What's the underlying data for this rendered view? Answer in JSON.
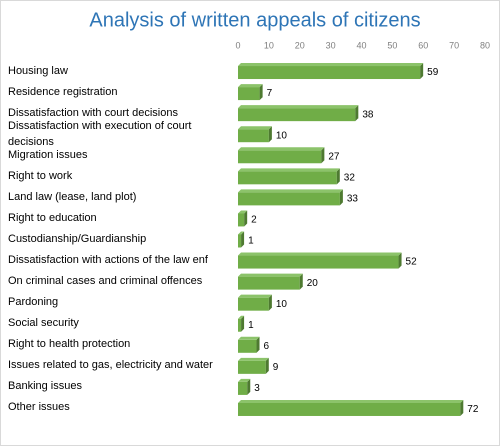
{
  "chart_data": {
    "type": "bar",
    "orientation": "horizontal",
    "title": "Analysis of written appeals of citizens",
    "categories": [
      "Housing law",
      "Residence registration",
      "Dissatisfaction with court decisions",
      "Dissatisfaction with execution of court decisions",
      "Migration issues",
      "Right to work",
      "Land law (lease, land plot)",
      "Right to education",
      "Custodianship/Guardianship",
      "Dissatisfaction with actions of the law enf",
      "On criminal cases and criminal offences",
      "Pardoning",
      "Social security",
      "Right to health protection",
      "Issues related to gas, electricity and water",
      "Banking issues",
      "Other issues"
    ],
    "values": [
      59,
      7,
      38,
      10,
      27,
      32,
      33,
      2,
      1,
      52,
      20,
      10,
      1,
      6,
      9,
      3,
      72
    ],
    "color": "#70ad47",
    "xlim": [
      0,
      80
    ],
    "xticks": [
      0,
      10,
      20,
      30,
      40,
      50,
      60,
      70,
      80
    ]
  }
}
